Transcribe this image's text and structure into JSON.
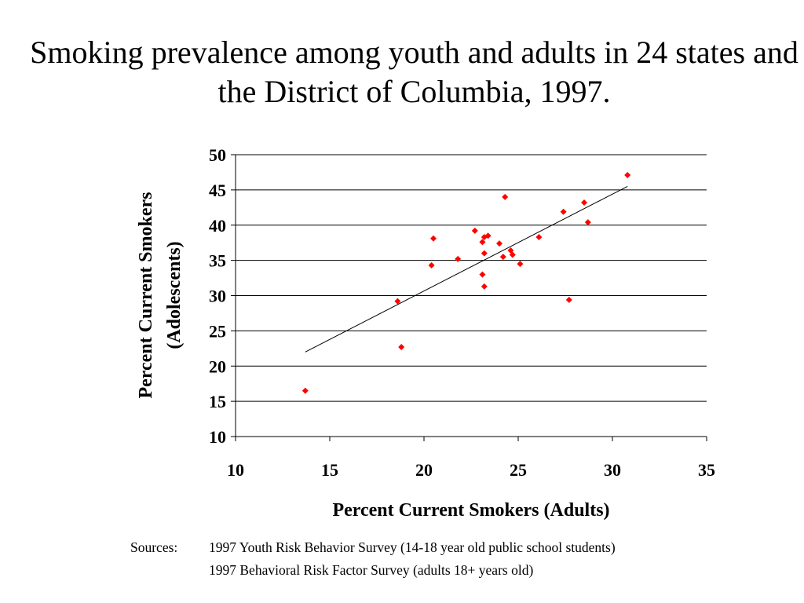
{
  "title": "Smoking prevalence among youth and adults in 24 states and the District of Columbia, 1997.",
  "chart_data": {
    "type": "scatter",
    "xlabel": "Percent Current Smokers (Adults)",
    "ylabel_lines": [
      "Percent Current Smokers",
      "(Adolescents)"
    ],
    "xlim": [
      10,
      35
    ],
    "ylim": [
      10,
      50
    ],
    "xticks": [
      10,
      15,
      20,
      25,
      30,
      35
    ],
    "yticks": [
      10,
      15,
      20,
      25,
      30,
      35,
      40,
      45,
      50
    ],
    "grid": "horizontal",
    "marker": "diamond",
    "marker_color": "#ff0000",
    "trendline": {
      "x": [
        13.7,
        30.8
      ],
      "y": [
        22.0,
        45.5
      ],
      "color": "#000000"
    },
    "points": [
      {
        "x": 13.7,
        "y": 16.5
      },
      {
        "x": 18.6,
        "y": 29.2
      },
      {
        "x": 18.8,
        "y": 22.7
      },
      {
        "x": 20.4,
        "y": 34.3
      },
      {
        "x": 20.5,
        "y": 38.1
      },
      {
        "x": 21.8,
        "y": 35.2
      },
      {
        "x": 22.7,
        "y": 39.2
      },
      {
        "x": 23.1,
        "y": 37.6
      },
      {
        "x": 23.2,
        "y": 38.3
      },
      {
        "x": 23.4,
        "y": 38.5
      },
      {
        "x": 23.2,
        "y": 36.0
      },
      {
        "x": 23.1,
        "y": 33.0
      },
      {
        "x": 23.2,
        "y": 31.3
      },
      {
        "x": 24.0,
        "y": 37.4
      },
      {
        "x": 24.2,
        "y": 35.5
      },
      {
        "x": 24.3,
        "y": 44.0
      },
      {
        "x": 24.6,
        "y": 36.4
      },
      {
        "x": 24.7,
        "y": 35.8
      },
      {
        "x": 25.1,
        "y": 34.5
      },
      {
        "x": 26.1,
        "y": 38.3
      },
      {
        "x": 27.4,
        "y": 41.9
      },
      {
        "x": 27.7,
        "y": 29.4
      },
      {
        "x": 28.5,
        "y": 43.2
      },
      {
        "x": 28.7,
        "y": 40.4
      },
      {
        "x": 30.8,
        "y": 47.1
      }
    ]
  },
  "sources": {
    "label": "Sources:",
    "line1": "1997 Youth Risk Behavior Survey (14-18 year old public school students)",
    "line2": "1997 Behavioral Risk Factor Survey (adults 18+ years old)"
  }
}
